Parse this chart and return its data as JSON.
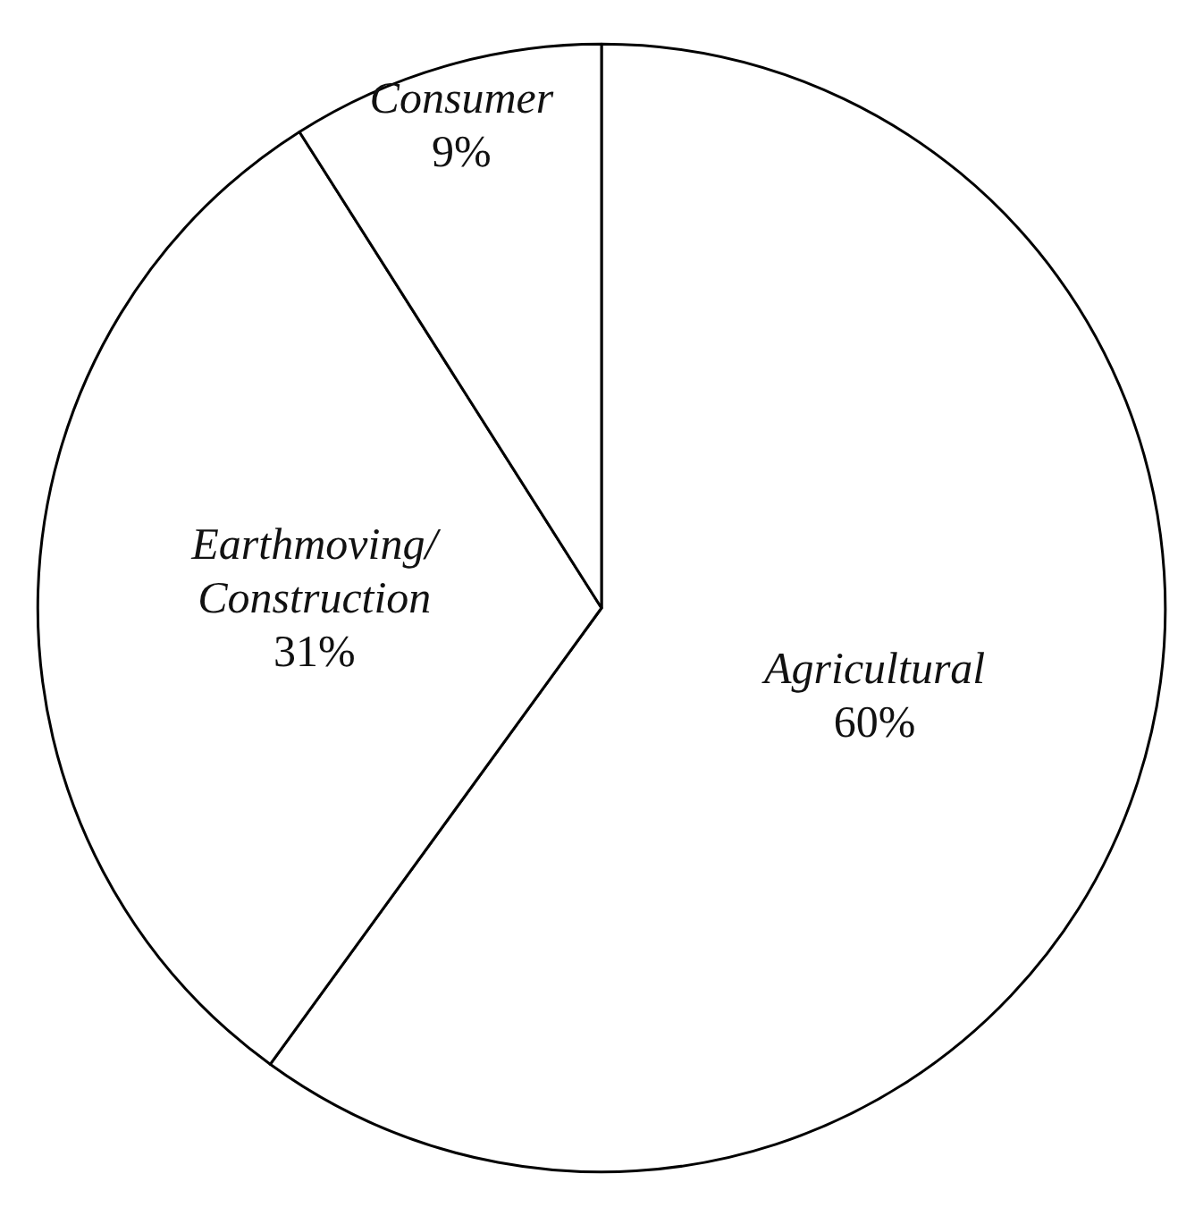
{
  "chart_data": {
    "type": "pie",
    "categories": [
      "Agricultural",
      "Earthmoving/\nConstruction",
      "Consumer"
    ],
    "values": [
      60,
      31,
      9
    ],
    "value_labels": [
      "60%",
      "31%",
      "9%"
    ],
    "colors": [
      "#ffffff",
      "#ffffff",
      "#ffffff"
    ],
    "legend": false
  }
}
